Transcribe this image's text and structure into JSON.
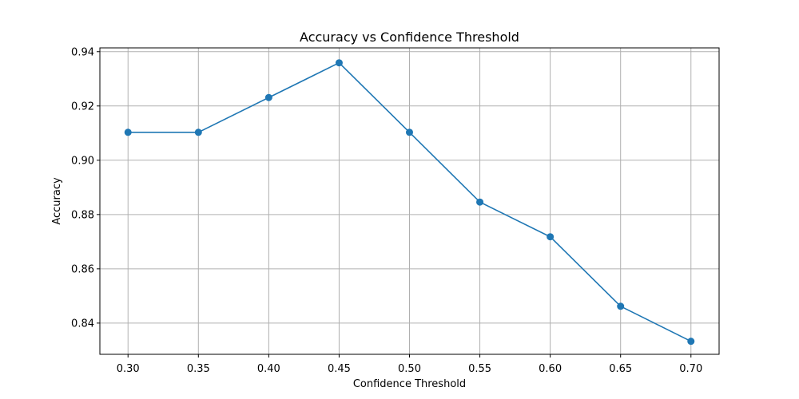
{
  "chart_data": {
    "type": "line",
    "title": "Accuracy vs Confidence Threshold",
    "xlabel": "Confidence Threshold",
    "ylabel": "Accuracy",
    "xlim": [
      0.28,
      0.72
    ],
    "ylim": [
      0.8285,
      0.9414
    ],
    "xticks": [
      "0.30",
      "0.35",
      "0.40",
      "0.45",
      "0.50",
      "0.55",
      "0.60",
      "0.65",
      "0.70"
    ],
    "yticks": [
      "0.84",
      "0.86",
      "0.88",
      "0.90",
      "0.92",
      "0.94"
    ],
    "grid": true,
    "series": [
      {
        "color": "#1f77b4",
        "marker": "circle",
        "x": [
          0.3,
          0.35,
          0.4,
          0.45,
          0.5,
          0.55,
          0.6,
          0.65,
          0.7
        ],
        "y": [
          0.9103,
          0.9103,
          0.9231,
          0.9359,
          0.9103,
          0.8846,
          0.8718,
          0.8462,
          0.8333
        ]
      }
    ]
  }
}
